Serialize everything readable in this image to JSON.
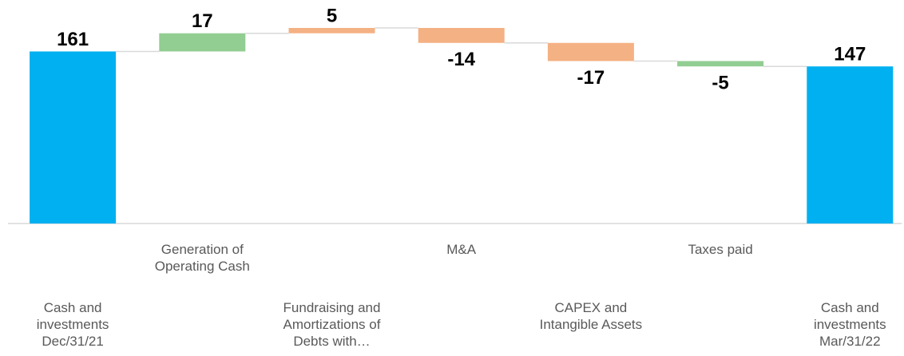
{
  "chart_data": {
    "type": "waterfall",
    "categories": [
      "Cash and investments Dec/31/21",
      "Generation of Operating Cash",
      "Fundraising and Amortizations of Debts with…",
      "M&A",
      "CAPEX and Intangible Assets",
      "Taxes paid",
      "Cash and investments Mar/31/22"
    ],
    "values": [
      161,
      17,
      5,
      -14,
      -17,
      -5,
      147
    ],
    "is_total": [
      true,
      false,
      false,
      false,
      false,
      false,
      true
    ],
    "colors": [
      "#00b0f0",
      "#92cd92",
      "#f4b183",
      "#f4b183",
      "#f4b183",
      "#92cd92",
      "#00b0f0"
    ]
  }
}
